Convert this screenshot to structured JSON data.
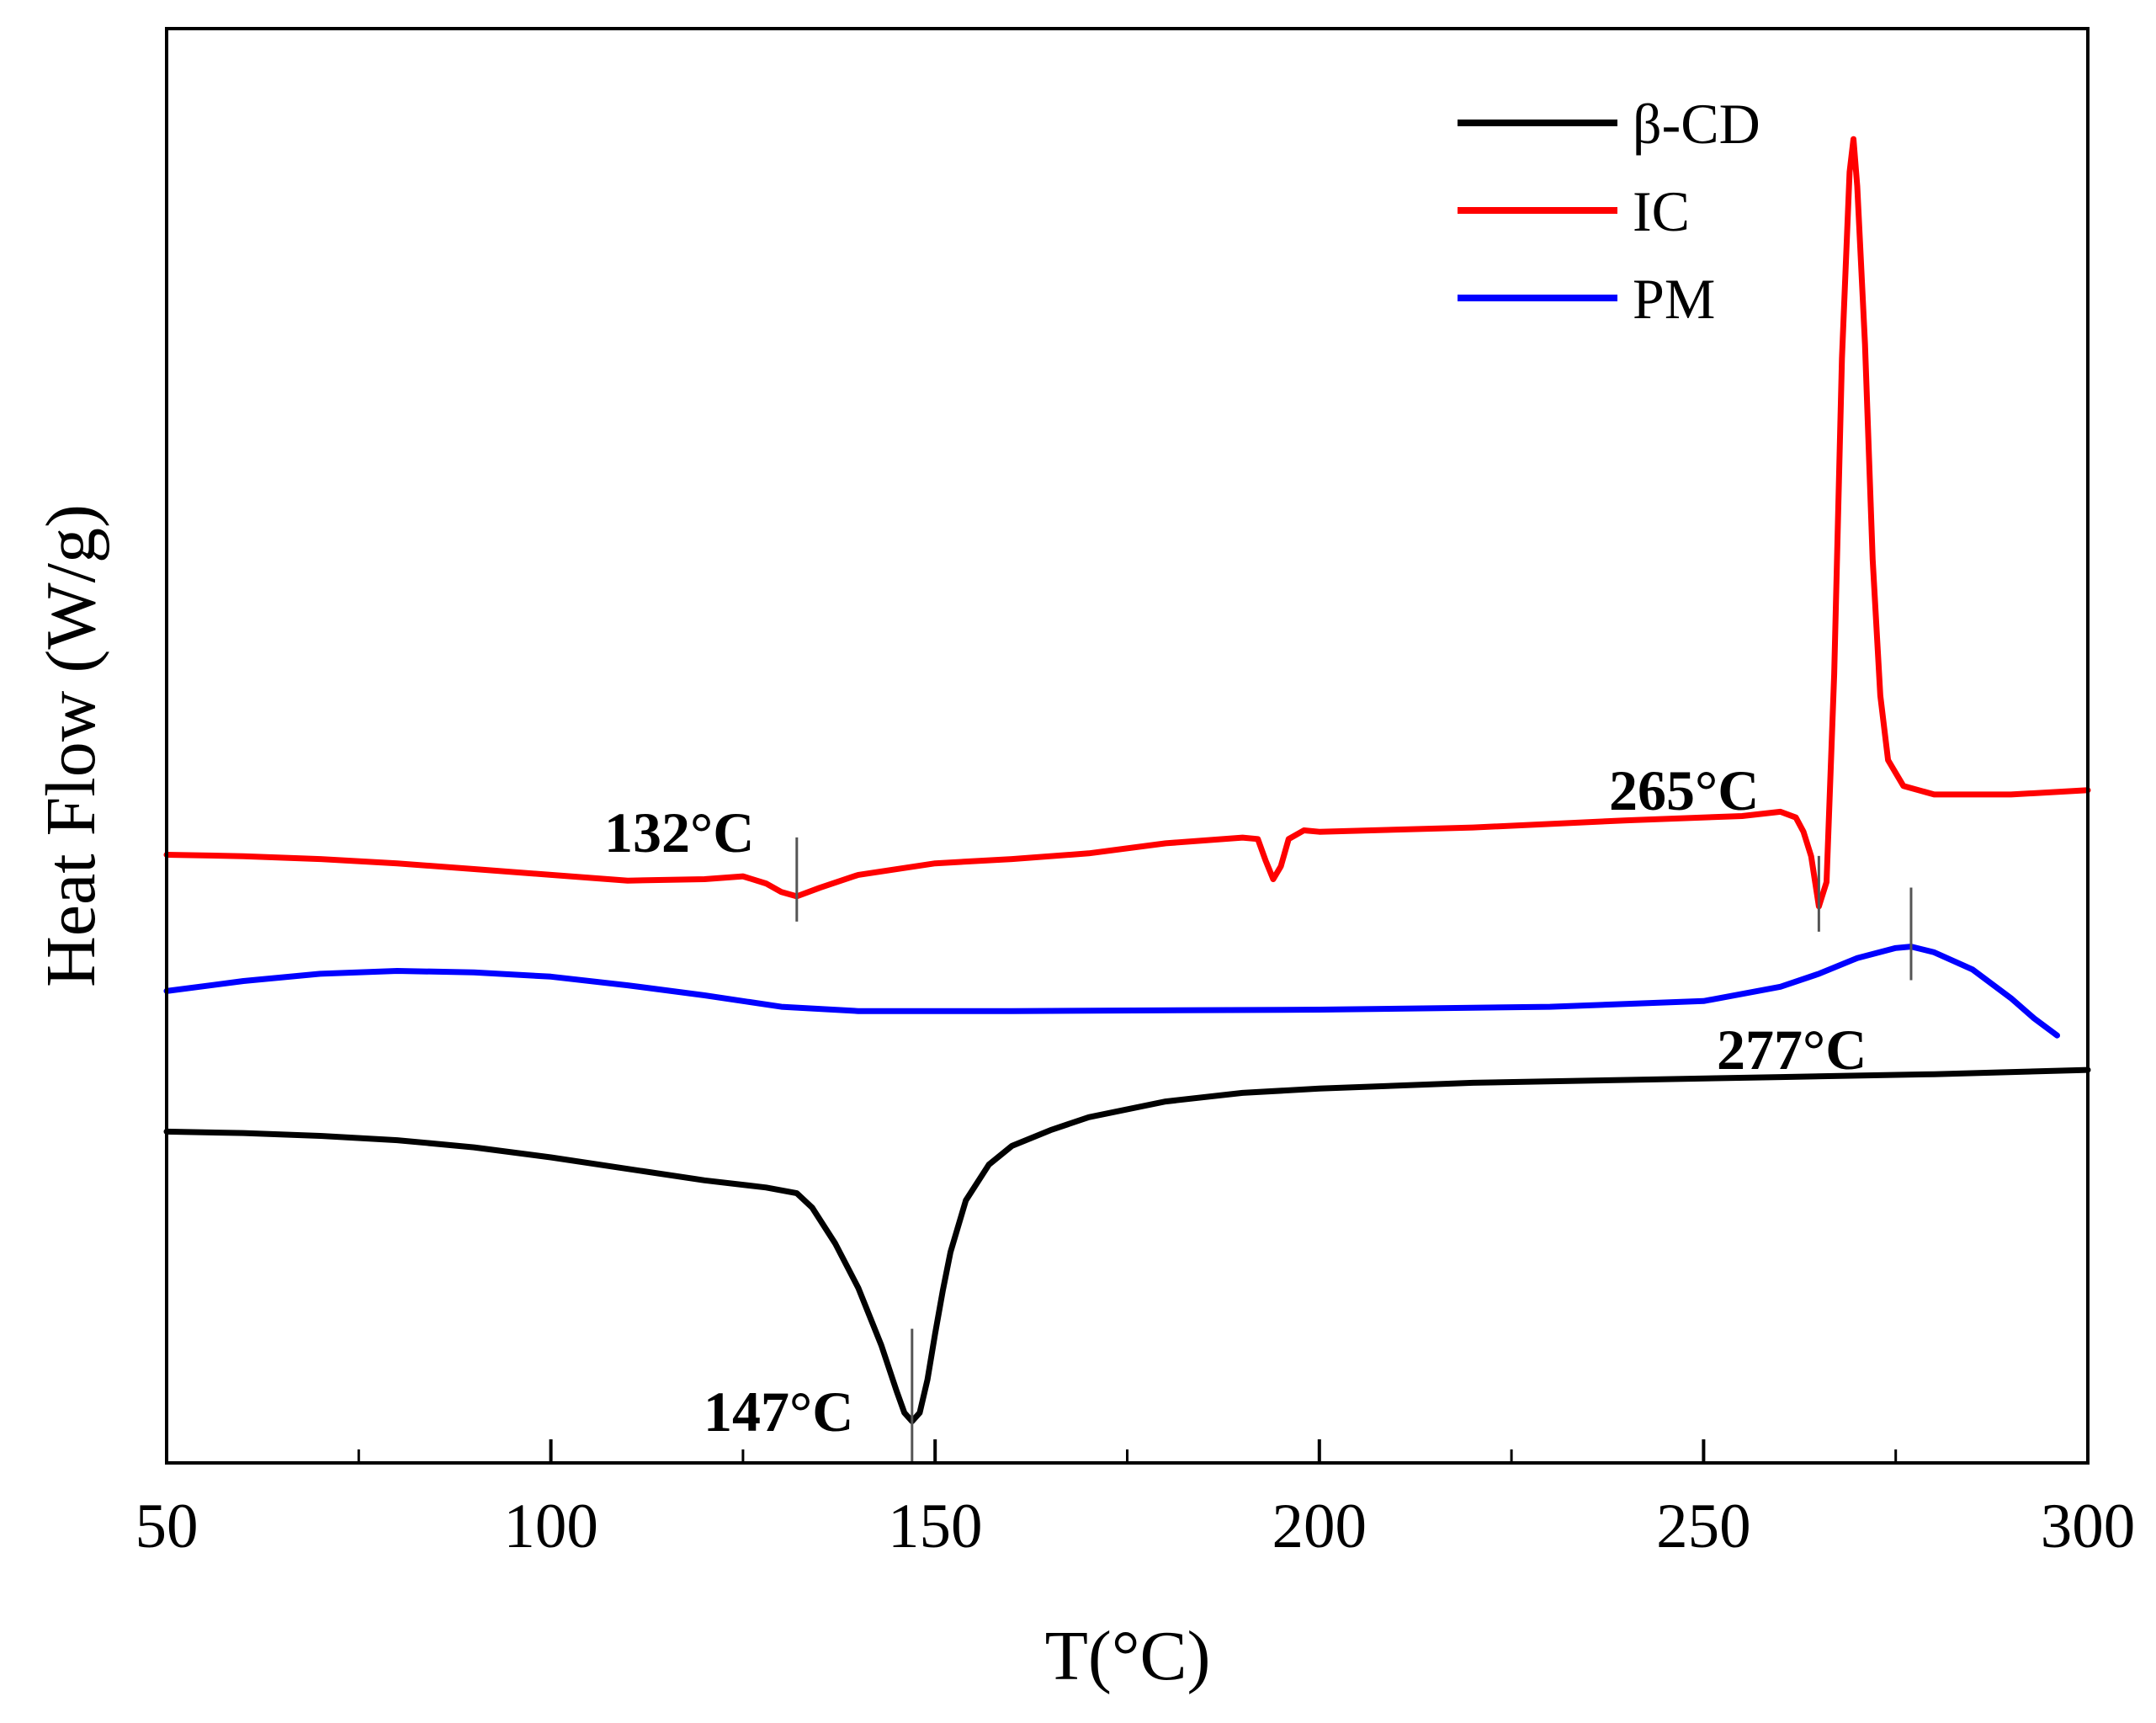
{
  "chart_data": {
    "type": "line",
    "title": "",
    "xlabel": "T(°C)",
    "ylabel": "Heat Flow (W/g)",
    "xlim": [
      50,
      300
    ],
    "ylim": [
      0,
      100
    ],
    "xticks": [
      50,
      100,
      150,
      200,
      250,
      300
    ],
    "xtick_labels": [
      "50",
      "100",
      "150",
      "200",
      "250",
      "300"
    ],
    "yticks_shown": false,
    "grid": false,
    "legend": {
      "placement": "top-right"
    },
    "series": [
      {
        "name": "β-CD",
        "color": "#000000",
        "points": [
          [
            50,
            23.1
          ],
          [
            60,
            23.0
          ],
          [
            70,
            22.8
          ],
          [
            80,
            22.5
          ],
          [
            90,
            22.0
          ],
          [
            100,
            21.3
          ],
          [
            110,
            20.5
          ],
          [
            120,
            19.7
          ],
          [
            128,
            19.2
          ],
          [
            132,
            18.8
          ],
          [
            134,
            17.8
          ],
          [
            137,
            15.3
          ],
          [
            140,
            12.2
          ],
          [
            143,
            8.2
          ],
          [
            145,
            5.0
          ],
          [
            146,
            3.5
          ],
          [
            147,
            2.9
          ],
          [
            148,
            3.5
          ],
          [
            149,
            5.8
          ],
          [
            150,
            9.0
          ],
          [
            151,
            12.0
          ],
          [
            152,
            14.7
          ],
          [
            154,
            18.3
          ],
          [
            157,
            20.8
          ],
          [
            160,
            22.1
          ],
          [
            165,
            23.2
          ],
          [
            170,
            24.1
          ],
          [
            180,
            25.2
          ],
          [
            190,
            25.8
          ],
          [
            200,
            26.1
          ],
          [
            220,
            26.5
          ],
          [
            240,
            26.7
          ],
          [
            260,
            26.9
          ],
          [
            280,
            27.1
          ],
          [
            300,
            27.4
          ]
        ]
      },
      {
        "name": "IC",
        "color": "#ff0000",
        "points": [
          [
            50,
            42.4
          ],
          [
            60,
            42.3
          ],
          [
            70,
            42.1
          ],
          [
            80,
            41.8
          ],
          [
            90,
            41.4
          ],
          [
            100,
            41.0
          ],
          [
            110,
            40.6
          ],
          [
            120,
            40.7
          ],
          [
            125,
            40.9
          ],
          [
            128,
            40.4
          ],
          [
            130,
            39.8
          ],
          [
            132,
            39.5
          ],
          [
            135,
            40.1
          ],
          [
            140,
            41.0
          ],
          [
            150,
            41.8
          ],
          [
            160,
            42.1
          ],
          [
            170,
            42.5
          ],
          [
            180,
            43.2
          ],
          [
            190,
            43.6
          ],
          [
            192,
            43.5
          ],
          [
            193,
            42.0
          ],
          [
            194,
            40.7
          ],
          [
            195,
            41.6
          ],
          [
            196,
            43.5
          ],
          [
            198,
            44.1
          ],
          [
            200,
            44.0
          ],
          [
            220,
            44.3
          ],
          [
            240,
            44.8
          ],
          [
            255,
            45.1
          ],
          [
            260,
            45.4
          ],
          [
            262,
            45.0
          ],
          [
            263,
            44.0
          ],
          [
            264,
            42.3
          ],
          [
            265,
            38.8
          ],
          [
            266,
            40.5
          ],
          [
            267,
            55.0
          ],
          [
            268,
            77.0
          ],
          [
            269,
            90.0
          ],
          [
            269.5,
            92.3
          ],
          [
            270,
            89.0
          ],
          [
            271,
            78.0
          ],
          [
            272,
            63.0
          ],
          [
            273,
            53.5
          ],
          [
            274,
            49.0
          ],
          [
            276,
            47.2
          ],
          [
            280,
            46.6
          ],
          [
            290,
            46.6
          ],
          [
            300,
            46.9
          ]
        ]
      },
      {
        "name": "PM",
        "color": "#0000ff",
        "points": [
          [
            50,
            32.9
          ],
          [
            60,
            33.6
          ],
          [
            70,
            34.1
          ],
          [
            80,
            34.3
          ],
          [
            90,
            34.2
          ],
          [
            100,
            33.9
          ],
          [
            110,
            33.3
          ],
          [
            120,
            32.6
          ],
          [
            130,
            31.8
          ],
          [
            140,
            31.5
          ],
          [
            160,
            31.5
          ],
          [
            200,
            31.6
          ],
          [
            230,
            31.8
          ],
          [
            250,
            32.2
          ],
          [
            260,
            33.2
          ],
          [
            265,
            34.1
          ],
          [
            270,
            35.2
          ],
          [
            275,
            35.9
          ],
          [
            277,
            36.0
          ],
          [
            280,
            35.6
          ],
          [
            285,
            34.4
          ],
          [
            290,
            32.4
          ],
          [
            293,
            31.0
          ],
          [
            296,
            29.8
          ]
        ]
      }
    ],
    "annotations": [
      {
        "label": "132°C",
        "x": 132,
        "series": "IC"
      },
      {
        "label": "265°C",
        "x": 265,
        "series": "IC"
      },
      {
        "label": "277°C",
        "x": 277,
        "series": "PM"
      },
      {
        "label": "147°C",
        "x": 147,
        "series": "β-CD"
      }
    ]
  }
}
